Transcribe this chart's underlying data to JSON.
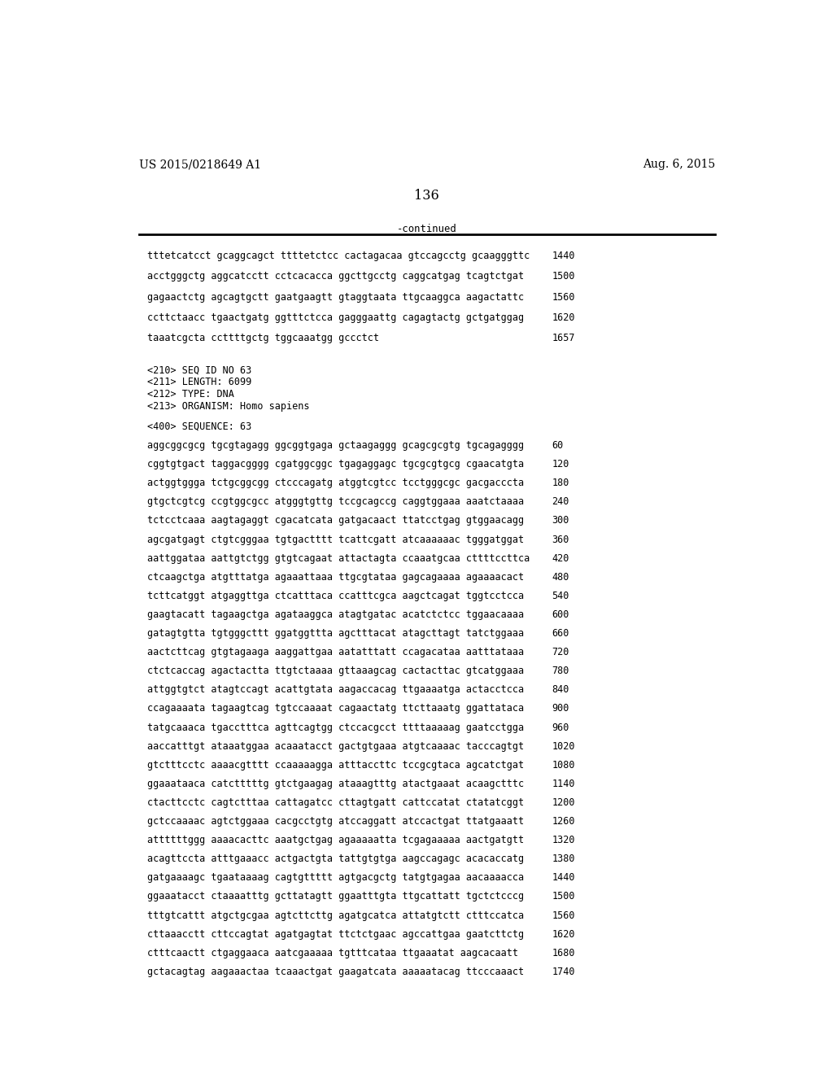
{
  "patent_left": "US 2015/0218649 A1",
  "patent_right": "Aug. 6, 2015",
  "page_number": "136",
  "continued_label": "-continued",
  "background_color": "#ffffff",
  "font_size_header": 10.0,
  "font_size_page": 11.5,
  "font_size_body": 8.8,
  "font_size_mono": 8.5,
  "sequence_lines_top": [
    [
      "tttetcatcct gcaggcagct ttttetctcc cactagacaa gtccagcctg gcaagggttc",
      "1440"
    ],
    [
      "acctgggctg aggcatcctt cctcacacca ggcttgcctg caggcatgag tcagtctgat",
      "1500"
    ],
    [
      "gagaactctg agcagtgctt gaatgaagtt gtaggtaata ttgcaaggca aagactattc",
      "1560"
    ],
    [
      "ccttctaacc tgaactgatg ggtttctcca gagggaattg cagagtactg gctgatggag",
      "1620"
    ],
    [
      "taaatcgcta ccttttgctg tggcaaatgg gccctct",
      "1657"
    ]
  ],
  "meta_lines": [
    "<210> SEQ ID NO 63",
    "<211> LENGTH: 6099",
    "<212> TYPE: DNA",
    "<213> ORGANISM: Homo sapiens"
  ],
  "sequence_label": "<400> SEQUENCE: 63",
  "sequence_lines_main": [
    [
      "aggcggcgcg tgcgtagagg ggcggtgaga gctaagaggg gcagcgcgtg tgcagagggg",
      "60"
    ],
    [
      "cggtgtgact taggacgggg cgatggcggc tgagaggagc tgcgcgtgcg cgaacatgta",
      "120"
    ],
    [
      "actggtggga tctgcggcgg ctcccagatg atggtcgtcc tcctgggcgc gacgacccta",
      "180"
    ],
    [
      "gtgctcgtcg ccgtggcgcc atgggtgttg tccgcagccg caggtggaaa aaatctaaaa",
      "240"
    ],
    [
      "tctcctcaaa aagtagaggt cgacatcata gatgacaact ttatcctgag gtggaacagg",
      "300"
    ],
    [
      "agcgatgagt ctgtcgggaa tgtgactttt tcattcgatt atcaaaaaac tgggatggat",
      "360"
    ],
    [
      "aattggataa aattgtctgg gtgtcagaat attactagta ccaaatgcaa cttttccttca",
      "420"
    ],
    [
      "ctcaagctga atgtttatga agaaattaaa ttgcgtataa gagcagaaaa agaaaacact",
      "480"
    ],
    [
      "tcttcatggt atgaggttga ctcatttaca ccatttcgca aagctcagat tggtcctcca",
      "540"
    ],
    [
      "gaagtacatt tagaagctga agataaggca atagtgatac acatctctcc tggaacaaaa",
      "600"
    ],
    [
      "gatagtgtta tgtgggcttt ggatggttta agctttacat atagcttagt tatctggaaa",
      "660"
    ],
    [
      "aactcttcag gtgtagaaga aaggattgaa aatatttatt ccagacataa aatttataaa",
      "720"
    ],
    [
      "ctctcaccag agactactta ttgtctaaaa gttaaagcag cactacttac gtcatggaaa",
      "780"
    ],
    [
      "attggtgtct atagtccagt acattgtata aagaccacag ttgaaaatga actacctcca",
      "840"
    ],
    [
      "ccagaaaata tagaagtcag tgtccaaaat cagaactatg ttcttaaatg ggattataca",
      "900"
    ],
    [
      "tatgcaaaca tgacctttca agttcagtgg ctccacgcct ttttaaaaag gaatcctgga",
      "960"
    ],
    [
      "aaccatttgt ataaatggaa acaaatacct gactgtgaaa atgtcaaaac tacccagtgt",
      "1020"
    ],
    [
      "gtctttcctc aaaacgtttt ccaaaaagga atttaccttc tccgcgtaca agcatctgat",
      "1080"
    ],
    [
      "ggaaataaca catctttttg gtctgaagag ataaagtttg atactgaaat acaagctttc",
      "1140"
    ],
    [
      "ctacttcctc cagtctttaa cattagatcc cttagtgatt cattccatat ctatatcggt",
      "1200"
    ],
    [
      "gctccaaaac agtctggaaa cacgcctgtg atccaggatt atccactgat ttatgaaatt",
      "1260"
    ],
    [
      "attttttggg aaaacacttc aaatgctgag agaaaaatta tcgagaaaaa aactgatgtt",
      "1320"
    ],
    [
      "acagttccta atttgaaacc actgactgta tattgtgtga aagccagagc acacaccatg",
      "1380"
    ],
    [
      "gatgaaaagc tgaataaaag cagtgttttt agtgacgctg tatgtgagaa aacaaaacca",
      "1440"
    ],
    [
      "ggaaatacct ctaaaatttg gcttatagtt ggaatttgta ttgcattatt tgctctcccg",
      "1500"
    ],
    [
      "tttgtcattt atgctgcgaa agtcttcttg agatgcatca attatgtctt ctttccatca",
      "1560"
    ],
    [
      "cttaaacctt cttccagtat agatgagtat ttctctgaac agccattgaa gaatcttctg",
      "1620"
    ],
    [
      "ctttcaactt ctgaggaaca aatcgaaaaa tgtttcataa ttgaaatat aagcacaatt",
      "1680"
    ],
    [
      "gctacagtag aagaaactaa tcaaactgat gaagatcata aaaaatacag ttcccaaact",
      "1740"
    ]
  ]
}
